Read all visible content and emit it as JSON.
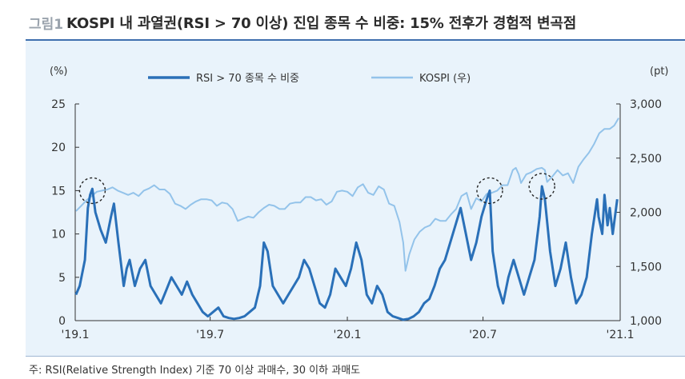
{
  "figure": {
    "label": "그림1",
    "title": "KOSPI 내 과열권(RSI > 70 이상) 진입 종목 수 비중: 15% 전후가 경험적 변곡점"
  },
  "note": "주: RSI(Relative Strength Index) 기준 70 이상 과매수, 30 이하 과매도",
  "colors": {
    "rsi": "#2a70b8",
    "kospi": "#93c3ea",
    "panel": "#e9f3fb",
    "rule": "#3f6fae",
    "marker": "#222222"
  },
  "chart_data": {
    "type": "line",
    "left_unit": "(%)",
    "right_unit": "(pt)",
    "x_ticks": [
      "'19.1",
      "'19.7",
      "'20.1",
      "'20.7",
      "'21.1"
    ],
    "x_tick_dates": [
      "2019-01-01",
      "2019-07-01",
      "2020-01-01",
      "2020-07-01",
      "2021-01-01"
    ],
    "x_range": [
      "2019-01-01",
      "2021-01-01"
    ],
    "y_left": {
      "min": 0,
      "max": 25,
      "ticks": [
        0,
        5,
        10,
        15,
        20,
        25
      ]
    },
    "y_right": {
      "min": 1000,
      "max": 3000,
      "ticks": [
        "1,000",
        "1,500",
        "2,000",
        "2,500",
        "3,000"
      ],
      "tick_values": [
        1000,
        1500,
        2000,
        2500,
        3000
      ]
    },
    "legend_position": "top-center",
    "series": [
      {
        "name": "RSI > 70 종목 수 비중",
        "axis": "left",
        "color": "#2a70b8",
        "points": [
          [
            "2019-01-02",
            3
          ],
          [
            "2019-01-07",
            4
          ],
          [
            "2019-01-14",
            7
          ],
          [
            "2019-01-18",
            13
          ],
          [
            "2019-01-21",
            14.5
          ],
          [
            "2019-01-24",
            15.2
          ],
          [
            "2019-01-28",
            12.5
          ],
          [
            "2019-02-04",
            10.5
          ],
          [
            "2019-02-11",
            9
          ],
          [
            "2019-02-18",
            12
          ],
          [
            "2019-02-22",
            13.5
          ],
          [
            "2019-02-28",
            9
          ],
          [
            "2019-03-07",
            4
          ],
          [
            "2019-03-11",
            6
          ],
          [
            "2019-03-15",
            7
          ],
          [
            "2019-03-22",
            4
          ],
          [
            "2019-03-29",
            6
          ],
          [
            "2019-04-05",
            7
          ],
          [
            "2019-04-12",
            4
          ],
          [
            "2019-04-19",
            3
          ],
          [
            "2019-04-26",
            2
          ],
          [
            "2019-05-03",
            3.5
          ],
          [
            "2019-05-10",
            5
          ],
          [
            "2019-05-17",
            4
          ],
          [
            "2019-05-24",
            3
          ],
          [
            "2019-05-31",
            4.5
          ],
          [
            "2019-06-07",
            3
          ],
          [
            "2019-06-14",
            2
          ],
          [
            "2019-06-21",
            1
          ],
          [
            "2019-06-28",
            0.5
          ],
          [
            "2019-07-05",
            1
          ],
          [
            "2019-07-12",
            1.5
          ],
          [
            "2019-07-19",
            0.5
          ],
          [
            "2019-07-26",
            0.3
          ],
          [
            "2019-08-02",
            0.2
          ],
          [
            "2019-08-09",
            0.3
          ],
          [
            "2019-08-16",
            0.5
          ],
          [
            "2019-08-23",
            1
          ],
          [
            "2019-08-30",
            1.5
          ],
          [
            "2019-09-06",
            4
          ],
          [
            "2019-09-11",
            9
          ],
          [
            "2019-09-16",
            8
          ],
          [
            "2019-09-23",
            4
          ],
          [
            "2019-09-30",
            3
          ],
          [
            "2019-10-07",
            2
          ],
          [
            "2019-10-14",
            3
          ],
          [
            "2019-10-21",
            4
          ],
          [
            "2019-10-28",
            5
          ],
          [
            "2019-11-04",
            7
          ],
          [
            "2019-11-11",
            6
          ],
          [
            "2019-11-18",
            4
          ],
          [
            "2019-11-25",
            2
          ],
          [
            "2019-12-02",
            1.5
          ],
          [
            "2019-12-09",
            3
          ],
          [
            "2019-12-16",
            6
          ],
          [
            "2019-12-23",
            5
          ],
          [
            "2019-12-30",
            4
          ],
          [
            "2020-01-06",
            6
          ],
          [
            "2020-01-13",
            9
          ],
          [
            "2020-01-20",
            7
          ],
          [
            "2020-01-27",
            3
          ],
          [
            "2020-02-03",
            2
          ],
          [
            "2020-02-10",
            4
          ],
          [
            "2020-02-17",
            3
          ],
          [
            "2020-02-24",
            1
          ],
          [
            "2020-03-02",
            0.5
          ],
          [
            "2020-03-09",
            0.3
          ],
          [
            "2020-03-16",
            0.1
          ],
          [
            "2020-03-23",
            0.2
          ],
          [
            "2020-03-30",
            0.5
          ],
          [
            "2020-04-06",
            1
          ],
          [
            "2020-04-13",
            2
          ],
          [
            "2020-04-20",
            2.5
          ],
          [
            "2020-04-27",
            4
          ],
          [
            "2020-05-04",
            6
          ],
          [
            "2020-05-11",
            7
          ],
          [
            "2020-05-18",
            9
          ],
          [
            "2020-05-25",
            11
          ],
          [
            "2020-06-01",
            13
          ],
          [
            "2020-06-08",
            10
          ],
          [
            "2020-06-15",
            7
          ],
          [
            "2020-06-22",
            9
          ],
          [
            "2020-06-29",
            12
          ],
          [
            "2020-07-06",
            14
          ],
          [
            "2020-07-10",
            15
          ],
          [
            "2020-07-14",
            8
          ],
          [
            "2020-07-21",
            4
          ],
          [
            "2020-07-28",
            2
          ],
          [
            "2020-08-04",
            5
          ],
          [
            "2020-08-11",
            7
          ],
          [
            "2020-08-18",
            5
          ],
          [
            "2020-08-25",
            3
          ],
          [
            "2020-09-01",
            5
          ],
          [
            "2020-09-08",
            7
          ],
          [
            "2020-09-15",
            12
          ],
          [
            "2020-09-18",
            15.5
          ],
          [
            "2020-09-22",
            14
          ],
          [
            "2020-09-29",
            8
          ],
          [
            "2020-10-06",
            4
          ],
          [
            "2020-10-13",
            6
          ],
          [
            "2020-10-20",
            9
          ],
          [
            "2020-10-27",
            5
          ],
          [
            "2020-11-03",
            2
          ],
          [
            "2020-11-10",
            3
          ],
          [
            "2020-11-17",
            5
          ],
          [
            "2020-11-24",
            10
          ],
          [
            "2020-12-01",
            14
          ],
          [
            "2020-12-03",
            12
          ],
          [
            "2020-12-08",
            10
          ],
          [
            "2020-12-11",
            14.5
          ],
          [
            "2020-12-15",
            11
          ],
          [
            "2020-12-18",
            13
          ],
          [
            "2020-12-22",
            10
          ],
          [
            "2020-12-28",
            14
          ]
        ]
      },
      {
        "name": "KOSPI (우)",
        "axis": "right",
        "color": "#93c3ea",
        "points": [
          [
            "2019-01-02",
            2010
          ],
          [
            "2019-01-09",
            2060
          ],
          [
            "2019-01-16",
            2110
          ],
          [
            "2019-01-23",
            2150
          ],
          [
            "2019-01-30",
            2190
          ],
          [
            "2019-02-06",
            2200
          ],
          [
            "2019-02-13",
            2210
          ],
          [
            "2019-02-20",
            2230
          ],
          [
            "2019-02-27",
            2200
          ],
          [
            "2019-03-06",
            2180
          ],
          [
            "2019-03-13",
            2160
          ],
          [
            "2019-03-20",
            2180
          ],
          [
            "2019-03-27",
            2150
          ],
          [
            "2019-04-03",
            2200
          ],
          [
            "2019-04-10",
            2220
          ],
          [
            "2019-04-17",
            2250
          ],
          [
            "2019-04-24",
            2210
          ],
          [
            "2019-05-01",
            2210
          ],
          [
            "2019-05-08",
            2170
          ],
          [
            "2019-05-15",
            2080
          ],
          [
            "2019-05-22",
            2060
          ],
          [
            "2019-05-29",
            2030
          ],
          [
            "2019-06-05",
            2070
          ],
          [
            "2019-06-12",
            2100
          ],
          [
            "2019-06-19",
            2120
          ],
          [
            "2019-06-26",
            2120
          ],
          [
            "2019-07-03",
            2110
          ],
          [
            "2019-07-10",
            2060
          ],
          [
            "2019-07-17",
            2090
          ],
          [
            "2019-07-24",
            2080
          ],
          [
            "2019-07-31",
            2030
          ],
          [
            "2019-08-07",
            1920
          ],
          [
            "2019-08-14",
            1940
          ],
          [
            "2019-08-21",
            1960
          ],
          [
            "2019-08-28",
            1950
          ],
          [
            "2019-09-04",
            2000
          ],
          [
            "2019-09-11",
            2040
          ],
          [
            "2019-09-18",
            2070
          ],
          [
            "2019-09-25",
            2060
          ],
          [
            "2019-10-02",
            2030
          ],
          [
            "2019-10-09",
            2030
          ],
          [
            "2019-10-16",
            2080
          ],
          [
            "2019-10-23",
            2090
          ],
          [
            "2019-10-30",
            2090
          ],
          [
            "2019-11-06",
            2140
          ],
          [
            "2019-11-13",
            2140
          ],
          [
            "2019-11-20",
            2110
          ],
          [
            "2019-11-27",
            2120
          ],
          [
            "2019-12-04",
            2070
          ],
          [
            "2019-12-11",
            2100
          ],
          [
            "2019-12-18",
            2190
          ],
          [
            "2019-12-25",
            2200
          ],
          [
            "2020-01-01",
            2190
          ],
          [
            "2020-01-08",
            2150
          ],
          [
            "2020-01-15",
            2230
          ],
          [
            "2020-01-22",
            2260
          ],
          [
            "2020-01-29",
            2180
          ],
          [
            "2020-02-05",
            2160
          ],
          [
            "2020-02-12",
            2240
          ],
          [
            "2020-02-19",
            2210
          ],
          [
            "2020-02-26",
            2080
          ],
          [
            "2020-03-04",
            2060
          ],
          [
            "2020-03-11",
            1910
          ],
          [
            "2020-03-16",
            1720
          ],
          [
            "2020-03-19",
            1460
          ],
          [
            "2020-03-24",
            1610
          ],
          [
            "2020-03-31",
            1750
          ],
          [
            "2020-04-07",
            1820
          ],
          [
            "2020-04-14",
            1860
          ],
          [
            "2020-04-21",
            1880
          ],
          [
            "2020-04-28",
            1940
          ],
          [
            "2020-05-05",
            1920
          ],
          [
            "2020-05-12",
            1920
          ],
          [
            "2020-05-19",
            1980
          ],
          [
            "2020-05-26",
            2030
          ],
          [
            "2020-06-02",
            2150
          ],
          [
            "2020-06-09",
            2180
          ],
          [
            "2020-06-15",
            2030
          ],
          [
            "2020-06-22",
            2130
          ],
          [
            "2020-06-29",
            2100
          ],
          [
            "2020-07-06",
            2170
          ],
          [
            "2020-07-13",
            2180
          ],
          [
            "2020-07-20",
            2200
          ],
          [
            "2020-07-27",
            2250
          ],
          [
            "2020-08-03",
            2250
          ],
          [
            "2020-08-10",
            2390
          ],
          [
            "2020-08-14",
            2410
          ],
          [
            "2020-08-18",
            2350
          ],
          [
            "2020-08-21",
            2270
          ],
          [
            "2020-08-28",
            2350
          ],
          [
            "2020-09-04",
            2370
          ],
          [
            "2020-09-11",
            2400
          ],
          [
            "2020-09-18",
            2410
          ],
          [
            "2020-09-22",
            2390
          ],
          [
            "2020-09-25",
            2280
          ],
          [
            "2020-10-02",
            2330
          ],
          [
            "2020-10-09",
            2390
          ],
          [
            "2020-10-16",
            2340
          ],
          [
            "2020-10-23",
            2360
          ],
          [
            "2020-10-30",
            2270
          ],
          [
            "2020-11-06",
            2420
          ],
          [
            "2020-11-13",
            2490
          ],
          [
            "2020-11-20",
            2550
          ],
          [
            "2020-11-27",
            2630
          ],
          [
            "2020-12-04",
            2730
          ],
          [
            "2020-12-11",
            2770
          ],
          [
            "2020-12-18",
            2770
          ],
          [
            "2020-12-24",
            2800
          ],
          [
            "2020-12-30",
            2870
          ]
        ]
      }
    ],
    "highlights": [
      {
        "date": "2019-01-24",
        "value": 15
      },
      {
        "date": "2020-07-10",
        "value": 15
      },
      {
        "date": "2020-09-18",
        "value": 15.5
      }
    ]
  }
}
